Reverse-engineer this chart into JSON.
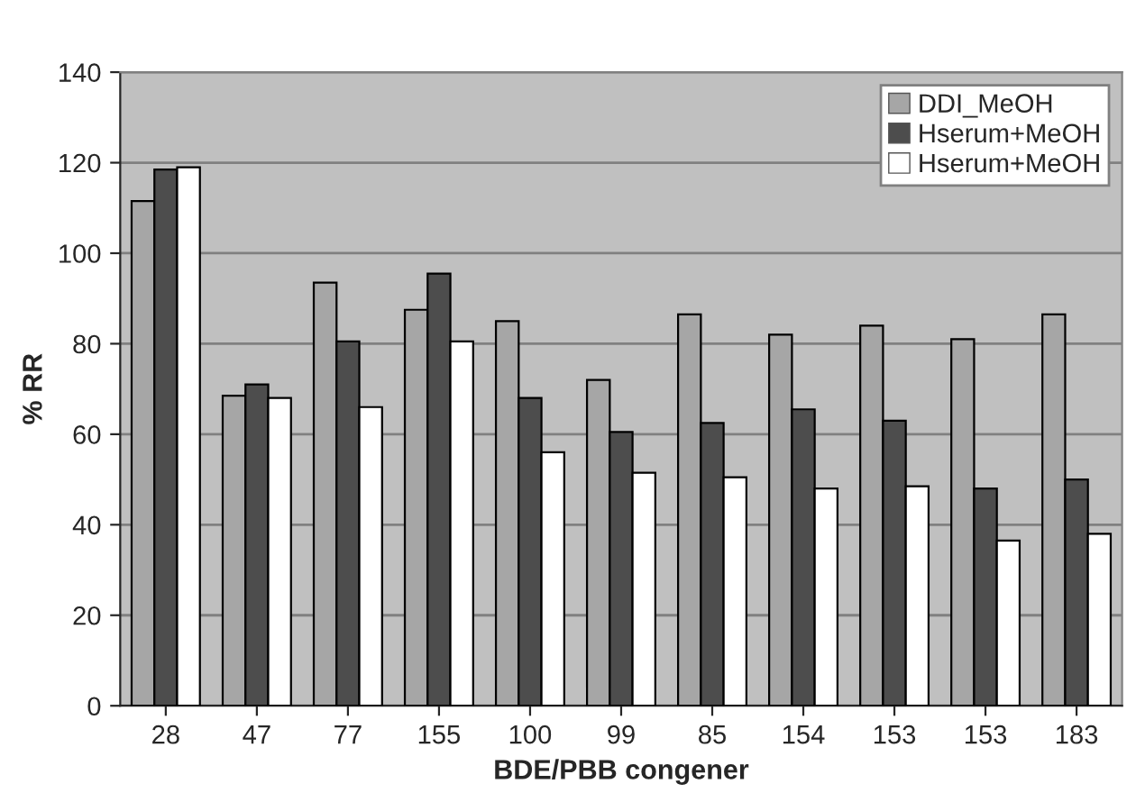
{
  "chart_data": {
    "type": "bar",
    "xlabel": "BDE/PBB congener",
    "ylabel": "% RR",
    "categories": [
      "28",
      "47",
      "77",
      "155",
      "100",
      "99",
      "85",
      "154",
      "153",
      "153",
      "183"
    ],
    "series": [
      {
        "name": "DDI_MeOH",
        "color": "#a6a6a6",
        "values": [
          111.5,
          68.5,
          93.5,
          87.5,
          85,
          72,
          86.5,
          82,
          84,
          81,
          86.5
        ]
      },
      {
        "name": "Hserum+MeOH",
        "color": "#4d4d4d",
        "values": [
          118.5,
          71,
          80.5,
          95.5,
          68,
          60.5,
          62.5,
          65.5,
          63,
          48,
          50
        ]
      },
      {
        "name": "Hserum+MeOH",
        "color": "#ffffff",
        "values": [
          119,
          68,
          66,
          80.5,
          56,
          51.5,
          50.5,
          48,
          48.5,
          36.5,
          38
        ]
      }
    ],
    "ylim": [
      0,
      140
    ],
    "yticks": [
      0,
      20,
      40,
      60,
      80,
      100,
      120,
      140
    ],
    "grid": "y",
    "legend": "top right"
  }
}
